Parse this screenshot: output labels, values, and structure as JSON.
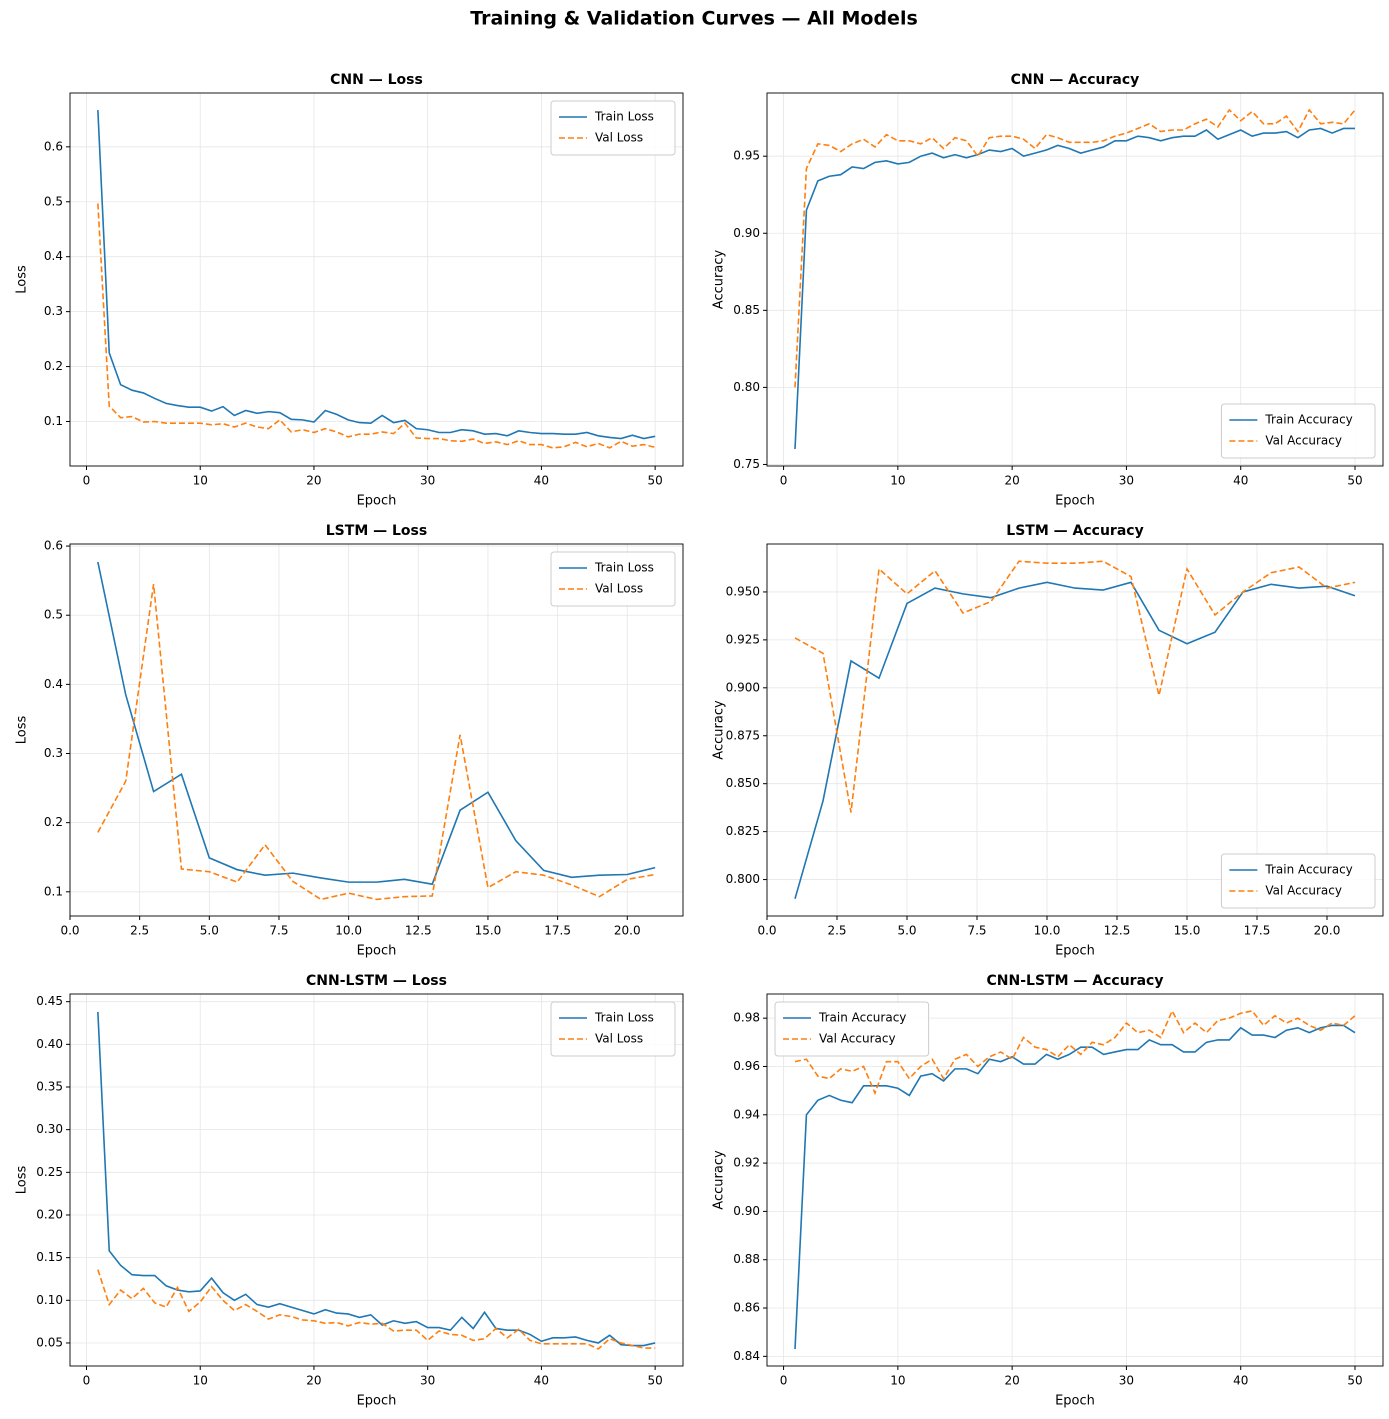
{
  "title": "Training & Validation Curves — All Models",
  "chart_data": [
    {
      "type": "line",
      "title": "CNN — Loss",
      "xlabel": "Epoch",
      "ylabel": "Loss",
      "legend": "upper right",
      "grid": true,
      "x": [
        1,
        2,
        3,
        4,
        5,
        6,
        7,
        8,
        9,
        10,
        11,
        12,
        13,
        14,
        15,
        16,
        17,
        18,
        19,
        20,
        21,
        22,
        23,
        24,
        25,
        26,
        27,
        28,
        29,
        30,
        31,
        32,
        33,
        34,
        35,
        36,
        37,
        38,
        39,
        40,
        41,
        42,
        43,
        44,
        45,
        46,
        47,
        48,
        49,
        50
      ],
      "xlim": [
        -1.45,
        52.45
      ],
      "xticks": [
        0,
        10,
        20,
        30,
        40,
        50
      ],
      "ylim": [
        0.019,
        0.698
      ],
      "yticks": [
        0.1,
        0.2,
        0.3,
        0.4,
        0.5,
        0.6
      ],
      "series": [
        {
          "name": "Train Loss",
          "color": "#1f77b4",
          "linestyle": "solid",
          "values": [
            0.667,
            0.225,
            0.167,
            0.157,
            0.152,
            0.142,
            0.133,
            0.129,
            0.126,
            0.126,
            0.119,
            0.127,
            0.111,
            0.12,
            0.115,
            0.118,
            0.116,
            0.104,
            0.103,
            0.099,
            0.12,
            0.113,
            0.103,
            0.098,
            0.097,
            0.111,
            0.098,
            0.102,
            0.087,
            0.085,
            0.08,
            0.08,
            0.085,
            0.083,
            0.077,
            0.078,
            0.074,
            0.083,
            0.08,
            0.078,
            0.078,
            0.077,
            0.077,
            0.08,
            0.074,
            0.071,
            0.069,
            0.075,
            0.069,
            0.073
          ]
        },
        {
          "name": "Val Loss",
          "color": "#ff7f0e",
          "linestyle": "dashed",
          "values": [
            0.497,
            0.128,
            0.107,
            0.109,
            0.099,
            0.1,
            0.097,
            0.097,
            0.097,
            0.097,
            0.094,
            0.096,
            0.09,
            0.097,
            0.09,
            0.087,
            0.103,
            0.081,
            0.085,
            0.08,
            0.087,
            0.081,
            0.072,
            0.077,
            0.077,
            0.081,
            0.078,
            0.097,
            0.07,
            0.069,
            0.069,
            0.065,
            0.064,
            0.068,
            0.06,
            0.063,
            0.058,
            0.065,
            0.058,
            0.058,
            0.052,
            0.054,
            0.062,
            0.054,
            0.06,
            0.052,
            0.064,
            0.055,
            0.058,
            0.053
          ]
        }
      ]
    },
    {
      "type": "line",
      "title": "CNN — Accuracy",
      "xlabel": "Epoch",
      "ylabel": "Accuracy",
      "legend": "lower right",
      "grid": true,
      "x": [
        1,
        2,
        3,
        4,
        5,
        6,
        7,
        8,
        9,
        10,
        11,
        12,
        13,
        14,
        15,
        16,
        17,
        18,
        19,
        20,
        21,
        22,
        23,
        24,
        25,
        26,
        27,
        28,
        29,
        30,
        31,
        32,
        33,
        34,
        35,
        36,
        37,
        38,
        39,
        40,
        41,
        42,
        43,
        44,
        45,
        46,
        47,
        48,
        49,
        50
      ],
      "xlim": [
        -1.45,
        52.45
      ],
      "xticks": [
        0,
        10,
        20,
        30,
        40,
        50
      ],
      "ylim": [
        0.749,
        0.991
      ],
      "yticks": [
        0.75,
        {
          "value": 0.8,
          "label": "0.80"
        },
        0.85,
        {
          "value": 0.9,
          "label": "0.90"
        },
        0.95
      ],
      "series": [
        {
          "name": "Train Accuracy",
          "color": "#1f77b4",
          "linestyle": "solid",
          "values": [
            0.76,
            0.915,
            0.934,
            0.937,
            0.938,
            0.943,
            0.942,
            0.946,
            0.947,
            0.945,
            0.946,
            0.95,
            0.952,
            0.949,
            0.951,
            0.949,
            0.951,
            0.954,
            0.953,
            0.955,
            0.95,
            0.952,
            0.954,
            0.957,
            0.955,
            0.952,
            0.954,
            0.956,
            0.96,
            0.96,
            0.963,
            0.962,
            0.96,
            0.962,
            0.963,
            0.963,
            0.967,
            0.961,
            0.964,
            0.967,
            0.963,
            0.965,
            0.965,
            0.966,
            0.962,
            0.967,
            0.968,
            0.965,
            0.968,
            0.968
          ]
        },
        {
          "name": "Val Accuracy",
          "color": "#ff7f0e",
          "linestyle": "dashed",
          "values": [
            0.8,
            0.942,
            0.958,
            0.957,
            0.953,
            0.958,
            0.961,
            0.956,
            0.964,
            0.96,
            0.96,
            0.958,
            0.962,
            0.955,
            0.962,
            0.96,
            0.95,
            0.962,
            0.963,
            0.963,
            0.961,
            0.955,
            0.964,
            0.962,
            0.959,
            0.959,
            0.959,
            0.96,
            0.963,
            0.965,
            0.968,
            0.971,
            0.966,
            0.967,
            0.967,
            0.971,
            0.974,
            0.969,
            0.98,
            0.973,
            0.979,
            0.971,
            0.971,
            0.976,
            0.966,
            0.98,
            0.971,
            0.972,
            0.971,
            0.98
          ]
        }
      ]
    },
    {
      "type": "line",
      "title": "LSTM — Loss",
      "xlabel": "Epoch",
      "ylabel": "Loss",
      "legend": "upper right",
      "grid": true,
      "x": [
        1,
        2,
        3,
        4,
        5,
        6,
        7,
        8,
        9,
        10,
        11,
        12,
        13,
        14,
        15,
        16,
        17,
        18,
        19,
        20,
        21
      ],
      "xlim": [
        0,
        22
      ],
      "xticks": [
        {
          "value": 0,
          "label": "0.0"
        },
        2.5,
        {
          "value": 5,
          "label": "5.0"
        },
        7.5,
        {
          "value": 10,
          "label": "10.0"
        },
        12.5,
        {
          "value": 15,
          "label": "15.0"
        },
        17.5,
        {
          "value": 20,
          "label": "20.0"
        }
      ],
      "ylim": [
        0.065,
        0.603
      ],
      "yticks": [
        0.1,
        0.2,
        0.3,
        0.4,
        0.5,
        0.6
      ],
      "series": [
        {
          "name": "Train Loss",
          "color": "#1f77b4",
          "linestyle": "solid",
          "values": [
            0.577,
            0.385,
            0.245,
            0.27,
            0.149,
            0.132,
            0.124,
            0.127,
            0.12,
            0.114,
            0.114,
            0.118,
            0.111,
            0.218,
            0.244,
            0.174,
            0.131,
            0.121,
            0.124,
            0.125,
            0.135
          ]
        },
        {
          "name": "Val Loss",
          "color": "#ff7f0e",
          "linestyle": "dashed",
          "values": [
            0.186,
            0.26,
            0.545,
            0.133,
            0.129,
            0.114,
            0.168,
            0.115,
            0.089,
            0.098,
            0.089,
            0.093,
            0.094,
            0.327,
            0.106,
            0.129,
            0.124,
            0.11,
            0.093,
            0.118,
            0.125
          ]
        }
      ]
    },
    {
      "type": "line",
      "title": "LSTM — Accuracy",
      "xlabel": "Epoch",
      "ylabel": "Accuracy",
      "legend": "lower right",
      "grid": true,
      "x": [
        1,
        2,
        3,
        4,
        5,
        6,
        7,
        8,
        9,
        10,
        11,
        12,
        13,
        14,
        15,
        16,
        17,
        18,
        19,
        20,
        21
      ],
      "xlim": [
        0,
        22
      ],
      "xticks": [
        {
          "value": 0,
          "label": "0.0"
        },
        2.5,
        {
          "value": 5,
          "label": "5.0"
        },
        7.5,
        {
          "value": 10,
          "label": "10.0"
        },
        12.5,
        {
          "value": 15,
          "label": "15.0"
        },
        17.5,
        {
          "value": 20,
          "label": "20.0"
        }
      ],
      "ylim": [
        0.781,
        0.975
      ],
      "yticks": [
        {
          "value": 0.8,
          "label": "0.800"
        },
        0.825,
        {
          "value": 0.85,
          "label": "0.850"
        },
        0.875,
        {
          "value": 0.9,
          "label": "0.900"
        },
        0.925,
        {
          "value": 0.95,
          "label": "0.950"
        }
      ],
      "series": [
        {
          "name": "Train Accuracy",
          "color": "#1f77b4",
          "linestyle": "solid",
          "values": [
            0.79,
            0.841,
            0.914,
            0.905,
            0.944,
            0.952,
            0.949,
            0.947,
            0.952,
            0.955,
            0.952,
            0.951,
            0.955,
            0.93,
            0.923,
            0.929,
            0.95,
            0.954,
            0.952,
            0.953,
            0.948
          ]
        },
        {
          "name": "Val Accuracy",
          "color": "#ff7f0e",
          "linestyle": "dashed",
          "values": [
            0.926,
            0.918,
            0.835,
            0.962,
            0.949,
            0.961,
            0.939,
            0.945,
            0.966,
            0.965,
            0.965,
            0.966,
            0.958,
            0.896,
            0.962,
            0.938,
            0.95,
            0.96,
            0.963,
            0.952,
            0.955
          ]
        }
      ]
    },
    {
      "type": "line",
      "title": "CNN-LSTM — Loss",
      "xlabel": "Epoch",
      "ylabel": "Loss",
      "legend": "upper right",
      "grid": true,
      "x": [
        1,
        2,
        3,
        4,
        5,
        6,
        7,
        8,
        9,
        10,
        11,
        12,
        13,
        14,
        15,
        16,
        17,
        18,
        19,
        20,
        21,
        22,
        23,
        24,
        25,
        26,
        27,
        28,
        29,
        30,
        31,
        32,
        33,
        34,
        35,
        36,
        37,
        38,
        39,
        40,
        41,
        42,
        43,
        44,
        45,
        46,
        47,
        48,
        49,
        50
      ],
      "xlim": [
        -1.45,
        52.45
      ],
      "xticks": [
        0,
        10,
        20,
        30,
        40,
        50
      ],
      "ylim": [
        0.023,
        0.459
      ],
      "yticks": [
        0.05,
        {
          "value": 0.1,
          "label": "0.10"
        },
        0.15,
        {
          "value": 0.2,
          "label": "0.20"
        },
        0.25,
        {
          "value": 0.3,
          "label": "0.30"
        },
        0.35,
        {
          "value": 0.4,
          "label": "0.40"
        },
        0.45
      ],
      "series": [
        {
          "name": "Train Loss",
          "color": "#1f77b4",
          "linestyle": "solid",
          "values": [
            0.438,
            0.158,
            0.141,
            0.13,
            0.129,
            0.129,
            0.117,
            0.112,
            0.11,
            0.111,
            0.126,
            0.109,
            0.1,
            0.107,
            0.095,
            0.092,
            0.096,
            0.092,
            0.088,
            0.084,
            0.089,
            0.085,
            0.084,
            0.08,
            0.083,
            0.071,
            0.076,
            0.073,
            0.075,
            0.068,
            0.068,
            0.065,
            0.08,
            0.067,
            0.086,
            0.067,
            0.065,
            0.065,
            0.06,
            0.052,
            0.056,
            0.056,
            0.057,
            0.053,
            0.05,
            0.059,
            0.048,
            0.047,
            0.047,
            0.05
          ]
        },
        {
          "name": "Val Loss",
          "color": "#ff7f0e",
          "linestyle": "dashed",
          "values": [
            0.136,
            0.095,
            0.112,
            0.102,
            0.114,
            0.097,
            0.092,
            0.115,
            0.087,
            0.098,
            0.116,
            0.1,
            0.088,
            0.095,
            0.087,
            0.078,
            0.083,
            0.081,
            0.077,
            0.076,
            0.073,
            0.074,
            0.07,
            0.074,
            0.072,
            0.073,
            0.064,
            0.065,
            0.065,
            0.053,
            0.064,
            0.06,
            0.059,
            0.053,
            0.055,
            0.067,
            0.056,
            0.066,
            0.053,
            0.049,
            0.049,
            0.049,
            0.049,
            0.049,
            0.043,
            0.055,
            0.05,
            0.047,
            0.044,
            0.044
          ]
        }
      ]
    },
    {
      "type": "line",
      "title": "CNN-LSTM — Accuracy",
      "xlabel": "Epoch",
      "ylabel": "Accuracy",
      "legend": "upper left",
      "grid": true,
      "x": [
        1,
        2,
        3,
        4,
        5,
        6,
        7,
        8,
        9,
        10,
        11,
        12,
        13,
        14,
        15,
        16,
        17,
        18,
        19,
        20,
        21,
        22,
        23,
        24,
        25,
        26,
        27,
        28,
        29,
        30,
        31,
        32,
        33,
        34,
        35,
        36,
        37,
        38,
        39,
        40,
        41,
        42,
        43,
        44,
        45,
        46,
        47,
        48,
        49,
        50
      ],
      "xlim": [
        -1.45,
        52.45
      ],
      "xticks": [
        0,
        10,
        20,
        30,
        40,
        50
      ],
      "ylim": [
        0.836,
        0.99
      ],
      "yticks": [
        0.84,
        0.86,
        0.88,
        {
          "value": 0.9,
          "label": "0.90"
        },
        0.92,
        0.94,
        0.96,
        0.98
      ],
      "series": [
        {
          "name": "Train Accuracy",
          "color": "#1f77b4",
          "linestyle": "solid",
          "values": [
            0.843,
            0.94,
            0.946,
            0.948,
            0.946,
            0.945,
            0.952,
            0.952,
            0.952,
            0.951,
            0.948,
            0.956,
            0.957,
            0.954,
            0.959,
            0.959,
            0.957,
            0.963,
            0.962,
            0.964,
            0.961,
            0.961,
            0.965,
            0.963,
            0.965,
            0.968,
            0.968,
            0.965,
            0.966,
            0.967,
            0.967,
            0.971,
            0.969,
            0.969,
            0.966,
            0.966,
            0.97,
            0.971,
            0.971,
            0.976,
            0.973,
            0.973,
            0.972,
            0.975,
            0.976,
            0.974,
            0.976,
            0.977,
            0.977,
            0.974
          ]
        },
        {
          "name": "Val Accuracy",
          "color": "#ff7f0e",
          "linestyle": "dashed",
          "values": [
            0.962,
            0.963,
            0.956,
            0.955,
            0.959,
            0.958,
            0.96,
            0.949,
            0.962,
            0.962,
            0.955,
            0.96,
            0.963,
            0.955,
            0.963,
            0.965,
            0.96,
            0.964,
            0.966,
            0.963,
            0.972,
            0.968,
            0.967,
            0.964,
            0.969,
            0.965,
            0.97,
            0.969,
            0.972,
            0.978,
            0.974,
            0.975,
            0.972,
            0.983,
            0.974,
            0.978,
            0.974,
            0.979,
            0.98,
            0.982,
            0.983,
            0.977,
            0.981,
            0.978,
            0.98,
            0.977,
            0.975,
            0.978,
            0.977,
            0.981
          ]
        }
      ]
    }
  ]
}
